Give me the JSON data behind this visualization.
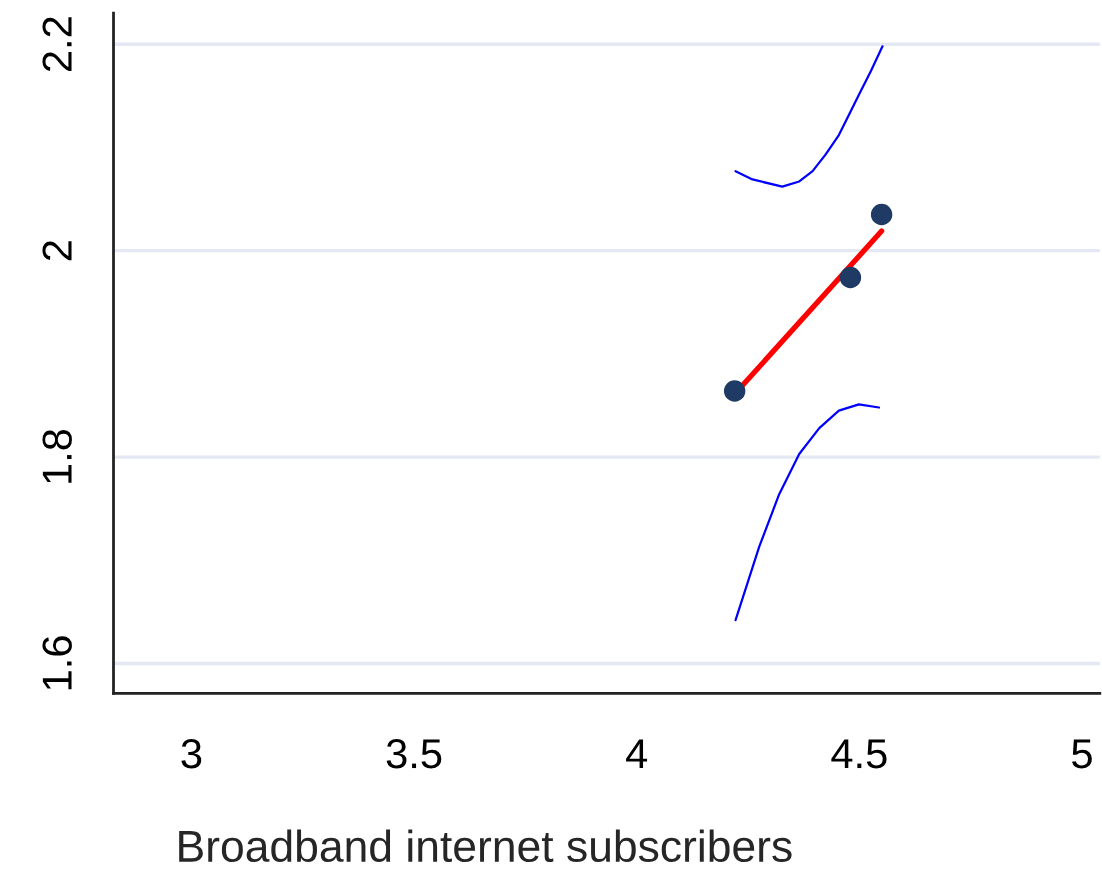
{
  "chart_data": {
    "type": "scatter",
    "xlabel": "Broadband internet subscribers",
    "xlim": [
      2.825,
      5.04
    ],
    "xticks": [
      3,
      3.5,
      4,
      4.5,
      5
    ],
    "ylim": [
      1.571,
      2.23
    ],
    "yticks": [
      1.6,
      1.8,
      2,
      2.2
    ],
    "grid": "y",
    "series": [
      {
        "color": "#1f3a64",
        "marker": "circle",
        "x": [
          4.22,
          4.48,
          4.55
        ],
        "values": [
          1.864,
          1.974,
          2.035
        ]
      },
      {
        "type": "line",
        "color": "#ff0000",
        "x": [
          4.22,
          4.45,
          4.55
        ],
        "values": [
          1.861,
          1.971,
          2.019
        ]
      },
      {
        "type": "line",
        "color": "#0000ff",
        "x": [
          4.222,
          4.26,
          4.327,
          4.365,
          4.395,
          4.424,
          4.454,
          4.477,
          4.499,
          4.526,
          4.552
        ],
        "values": [
          2.077,
          2.069,
          2.062,
          2.067,
          2.077,
          2.093,
          2.112,
          2.132,
          2.151,
          2.174,
          2.198
        ]
      },
      {
        "type": "line",
        "color": "#0000ff",
        "x": [
          4.222,
          4.275,
          4.32,
          4.365,
          4.41,
          4.454,
          4.499,
          4.544
        ],
        "values": [
          1.642,
          1.713,
          1.764,
          1.803,
          1.828,
          1.845,
          1.851,
          1.848
        ]
      }
    ]
  }
}
